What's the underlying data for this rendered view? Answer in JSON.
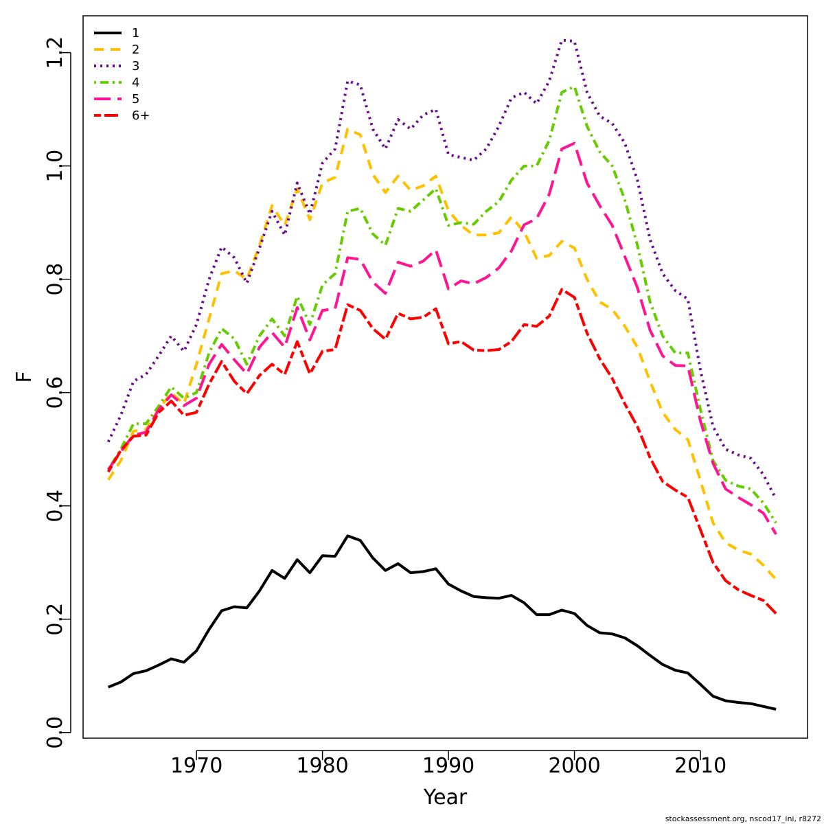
{
  "chart_data": {
    "type": "line",
    "xlabel": "Year",
    "ylabel": "F",
    "xlim": [
      1961,
      2018.5
    ],
    "ylim": [
      -0.01,
      1.265
    ],
    "x_ticks": [
      "1970",
      "1980",
      "1990",
      "2000",
      "2010"
    ],
    "y_ticks": [
      "0.0",
      "0.2",
      "0.4",
      "0.6",
      "0.8",
      "1.0",
      "1.2"
    ],
    "legend_position": "top-left",
    "footer": "stockassessment.org, nscod17_ini, r8272",
    "x": [
      1963,
      1964,
      1965,
      1966,
      1967,
      1968,
      1969,
      1970,
      1971,
      1972,
      1973,
      1974,
      1975,
      1976,
      1977,
      1978,
      1979,
      1980,
      1981,
      1982,
      1983,
      1984,
      1985,
      1986,
      1987,
      1988,
      1989,
      1990,
      1991,
      1992,
      1993,
      1994,
      1995,
      1996,
      1997,
      1998,
      1999,
      2000,
      2001,
      2002,
      2003,
      2004,
      2005,
      2006,
      2007,
      2008,
      2009,
      2010,
      2011,
      2012,
      2013,
      2014,
      2015,
      2016
    ],
    "series": [
      {
        "name": "1",
        "color": "#000000",
        "dash": "solid",
        "values": [
          0.08,
          0.089,
          0.104,
          0.109,
          0.119,
          0.13,
          0.124,
          0.144,
          0.182,
          0.215,
          0.222,
          0.22,
          0.25,
          0.286,
          0.272,
          0.305,
          0.282,
          0.312,
          0.311,
          0.347,
          0.339,
          0.308,
          0.286,
          0.298,
          0.282,
          0.284,
          0.289,
          0.262,
          0.25,
          0.24,
          0.238,
          0.237,
          0.242,
          0.229,
          0.208,
          0.208,
          0.216,
          0.21,
          0.189,
          0.176,
          0.174,
          0.167,
          0.153,
          0.136,
          0.12,
          0.11,
          0.105,
          0.085,
          0.064,
          0.056,
          0.053,
          0.051,
          0.046,
          0.041
        ]
      },
      {
        "name": "2",
        "color": "#FFC000",
        "dash": "dashed",
        "values": [
          0.446,
          0.48,
          0.532,
          0.535,
          0.57,
          0.6,
          0.58,
          0.65,
          0.73,
          0.81,
          0.815,
          0.8,
          0.86,
          0.93,
          0.895,
          0.96,
          0.905,
          0.97,
          0.98,
          1.065,
          1.055,
          0.985,
          0.953,
          0.982,
          0.957,
          0.965,
          0.982,
          0.921,
          0.895,
          0.878,
          0.878,
          0.882,
          0.91,
          0.884,
          0.837,
          0.842,
          0.867,
          0.855,
          0.8,
          0.76,
          0.747,
          0.717,
          0.68,
          0.62,
          0.565,
          0.535,
          0.517,
          0.445,
          0.37,
          0.335,
          0.322,
          0.315,
          0.295,
          0.27
        ]
      },
      {
        "name": "3",
        "color": "#6A0A8C",
        "dash": "dotted",
        "values": [
          0.513,
          0.56,
          0.62,
          0.632,
          0.665,
          0.7,
          0.673,
          0.72,
          0.8,
          0.857,
          0.838,
          0.793,
          0.855,
          0.92,
          0.878,
          0.97,
          0.915,
          1.005,
          1.03,
          1.15,
          1.143,
          1.065,
          1.03,
          1.082,
          1.065,
          1.09,
          1.1,
          1.02,
          1.015,
          1.01,
          1.03,
          1.07,
          1.12,
          1.13,
          1.11,
          1.15,
          1.222,
          1.22,
          1.13,
          1.088,
          1.075,
          1.04,
          0.975,
          0.87,
          0.81,
          0.78,
          0.765,
          0.64,
          0.54,
          0.5,
          0.49,
          0.484,
          0.455,
          0.412
        ]
      },
      {
        "name": "4",
        "color": "#66CC00",
        "dash": "dotdash",
        "values": [
          0.464,
          0.5,
          0.545,
          0.545,
          0.576,
          0.61,
          0.59,
          0.6,
          0.67,
          0.713,
          0.695,
          0.65,
          0.7,
          0.73,
          0.7,
          0.77,
          0.72,
          0.79,
          0.81,
          0.92,
          0.925,
          0.88,
          0.86,
          0.925,
          0.92,
          0.94,
          0.96,
          0.895,
          0.9,
          0.897,
          0.92,
          0.937,
          0.975,
          1.0,
          1.0,
          1.045,
          1.13,
          1.14,
          1.07,
          1.025,
          1.0,
          0.94,
          0.86,
          0.76,
          0.7,
          0.67,
          0.67,
          0.57,
          0.48,
          0.445,
          0.435,
          0.43,
          0.405,
          0.37
        ]
      },
      {
        "name": "5",
        "color": "#FF1493",
        "dash": "longdash",
        "values": [
          0.464,
          0.496,
          0.525,
          0.53,
          0.57,
          0.596,
          0.577,
          0.59,
          0.65,
          0.685,
          0.658,
          0.633,
          0.68,
          0.706,
          0.68,
          0.75,
          0.693,
          0.745,
          0.748,
          0.838,
          0.835,
          0.795,
          0.775,
          0.83,
          0.823,
          0.832,
          0.852,
          0.783,
          0.797,
          0.792,
          0.803,
          0.82,
          0.85,
          0.896,
          0.907,
          0.95,
          1.03,
          1.04,
          0.97,
          0.93,
          0.895,
          0.84,
          0.785,
          0.71,
          0.665,
          0.648,
          0.647,
          0.55,
          0.475,
          0.43,
          0.415,
          0.402,
          0.387,
          0.35
        ]
      },
      {
        "name": "6+",
        "color": "#FF0000",
        "dash": "twodash",
        "values": [
          0.46,
          0.498,
          0.523,
          0.525,
          0.565,
          0.585,
          0.56,
          0.565,
          0.615,
          0.655,
          0.62,
          0.598,
          0.63,
          0.65,
          0.632,
          0.69,
          0.633,
          0.673,
          0.676,
          0.755,
          0.745,
          0.713,
          0.694,
          0.74,
          0.73,
          0.733,
          0.748,
          0.686,
          0.69,
          0.675,
          0.674,
          0.676,
          0.69,
          0.72,
          0.717,
          0.735,
          0.782,
          0.768,
          0.705,
          0.66,
          0.625,
          0.58,
          0.54,
          0.485,
          0.443,
          0.428,
          0.415,
          0.358,
          0.3,
          0.268,
          0.252,
          0.242,
          0.233,
          0.21
        ]
      }
    ]
  }
}
